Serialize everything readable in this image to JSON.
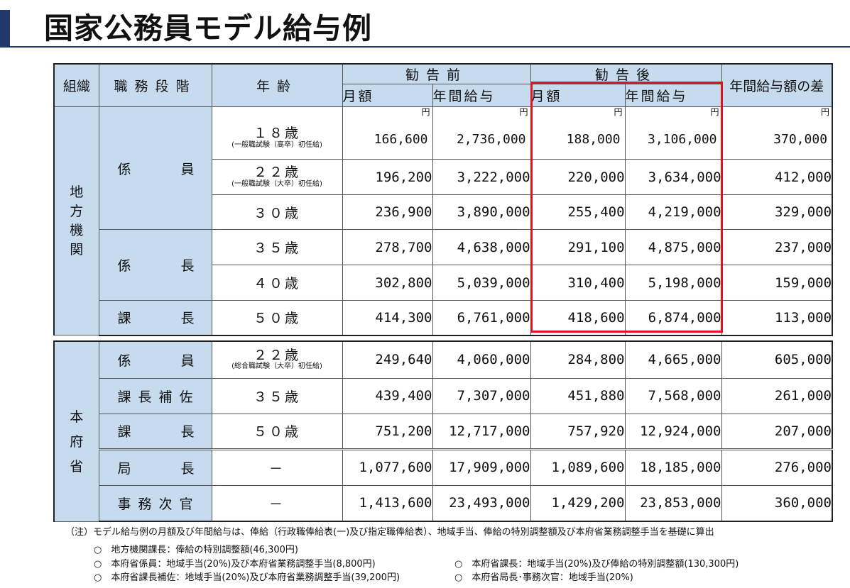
{
  "title": "国家公務員モデル給与例",
  "headers": {
    "organization": "組織",
    "position": "職務段階",
    "age": "年齢",
    "before": "勧告前",
    "after": "勧告後",
    "diff": "年間給与額の差",
    "monthly": "月額",
    "annual": "年間給与"
  },
  "regional": {
    "org_label": [
      "地",
      "方",
      "機",
      "関"
    ],
    "unit": "円",
    "groups": [
      {
        "label_left": "係",
        "label_right": "員"
      },
      {
        "label_left": "係",
        "label_right": "長"
      },
      {
        "label_left": "課",
        "label_right": "長"
      }
    ],
    "rows": [
      {
        "age": "１８歳",
        "age_note": "(一般職試験（高卒）初任給)",
        "before_month": "166,600",
        "before_annual": "2,736,000",
        "after_month": "188,000",
        "after_annual": "3,106,000",
        "diff": "370,000"
      },
      {
        "age": "２２歳",
        "age_note": "(一般職試験（大卒）初任給)",
        "before_month": "196,200",
        "before_annual": "3,222,000",
        "after_month": "220,000",
        "after_annual": "3,634,000",
        "diff": "412,000"
      },
      {
        "age": "３０歳",
        "before_month": "236,900",
        "before_annual": "3,890,000",
        "after_month": "255,400",
        "after_annual": "4,219,000",
        "diff": "329,000"
      },
      {
        "age": "３５歳",
        "before_month": "278,700",
        "before_annual": "4,638,000",
        "after_month": "291,100",
        "after_annual": "4,875,000",
        "diff": "237,000"
      },
      {
        "age": "４０歳",
        "before_month": "302,800",
        "before_annual": "5,039,000",
        "after_month": "310,400",
        "after_annual": "5,198,000",
        "diff": "159,000"
      },
      {
        "age": "５０歳",
        "before_month": "414,300",
        "before_annual": "6,761,000",
        "after_month": "418,600",
        "after_annual": "6,874,000",
        "diff": "113,000"
      }
    ]
  },
  "ministry": {
    "org_label": [
      "本",
      "府",
      "省"
    ],
    "rows": [
      {
        "position_left": "係",
        "position_right": "員",
        "age": "２２歳",
        "age_note": "(総合職試験（大卒）初任給)",
        "before_month": "249,640",
        "before_annual": "4,060,000",
        "after_month": "284,800",
        "after_annual": "4,665,000",
        "diff": "605,000"
      },
      {
        "position": "課長補佐",
        "age": "３５歳",
        "before_month": "439,400",
        "before_annual": "7,307,000",
        "after_month": "451,880",
        "after_annual": "7,568,000",
        "diff": "261,000"
      },
      {
        "position_left": "課",
        "position_right": "長",
        "age": "５０歳",
        "before_month": "751,200",
        "before_annual": "12,717,000",
        "after_month": "757,920",
        "after_annual": "12,924,000",
        "diff": "207,000"
      },
      {
        "position_left": "局",
        "position_right": "長",
        "age": "－",
        "before_month": "1,077,600",
        "before_annual": "17,909,000",
        "after_month": "1,089,600",
        "after_annual": "18,185,000",
        "diff": "276,000"
      },
      {
        "position": "事務次官",
        "age": "－",
        "before_month": "1,413,600",
        "before_annual": "23,493,000",
        "after_month": "1,429,200",
        "after_annual": "23,853,000",
        "diff": "360,000"
      }
    ]
  },
  "notes": {
    "intro": "（注）モデル給与例の月額及び年間給与は、俸給（行政職俸給表(一)及び指定職俸給表）、地域手当、俸給の特別調整額及び本府省業務調整手当を基礎に算出",
    "items": [
      "○　地方機関課長：俸給の特別調整額(46,300円)",
      "○　本府省係員：地域手当(20%)及び本府省業務調整手当(8,800円)",
      "○　本府省課長補佐：地域手当(20%)及び本府省業務調整手当(39,200円)",
      "○　本府省課長：地域手当(20%)及び俸給の特別調整額(130,300円)",
      "○　本府省局長･事務次官：地域手当(20%)"
    ]
  },
  "colors": {
    "header_bg": "#c6dcee",
    "highlight": "#e0141e",
    "title_accent": "#22376b"
  }
}
